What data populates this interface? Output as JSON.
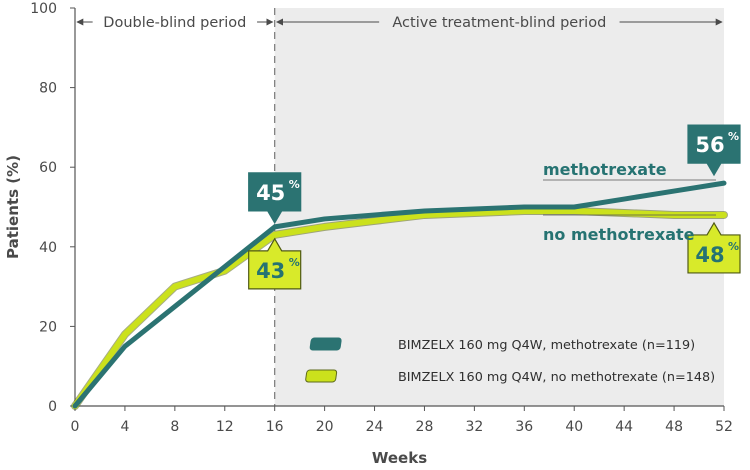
{
  "chart_data": {
    "type": "line",
    "xlabel": "Weeks",
    "ylabel": "Patients (%)",
    "xlim": [
      0,
      52
    ],
    "ylim": [
      0,
      100
    ],
    "x_ticks": [
      0,
      4,
      8,
      12,
      16,
      20,
      24,
      28,
      32,
      36,
      40,
      44,
      48,
      52
    ],
    "y_ticks": [
      0,
      20,
      40,
      60,
      80,
      100
    ],
    "periods": [
      {
        "label": "Double-blind period",
        "from": 0,
        "to": 16
      },
      {
        "label": "Active treatment-blind period",
        "from": 16,
        "to": 52
      }
    ],
    "series": [
      {
        "name": "BIMZELX 160 mg Q4W, methotrexate (n=119)",
        "label": "methotrexate",
        "color": "#2b7372",
        "x": [
          0,
          4,
          8,
          12,
          16,
          20,
          24,
          28,
          32,
          36,
          40,
          44,
          48,
          52
        ],
        "values": [
          0,
          15,
          25,
          35,
          45,
          47,
          48,
          49,
          49.5,
          50,
          50,
          52,
          54,
          56
        ],
        "callout": {
          "x": 16,
          "value": "45",
          "suffix": "%"
        },
        "end_callout": {
          "value": "56",
          "suffix": "%"
        }
      },
      {
        "name": "BIMZELX 160 mg Q4W, no methotrexate (n=148)",
        "label": "no methotrexate",
        "color": "#cbe11c",
        "x": [
          0,
          4,
          8,
          12,
          16,
          20,
          24,
          28,
          32,
          36,
          40,
          44,
          48,
          52
        ],
        "values": [
          0,
          18,
          30,
          34,
          43,
          45,
          46.5,
          48,
          48.5,
          49,
          49,
          48.5,
          48,
          48
        ],
        "callout": {
          "x": 16,
          "value": "43",
          "suffix": "%"
        },
        "end_callout": {
          "value": "48",
          "suffix": "%"
        }
      }
    ]
  }
}
